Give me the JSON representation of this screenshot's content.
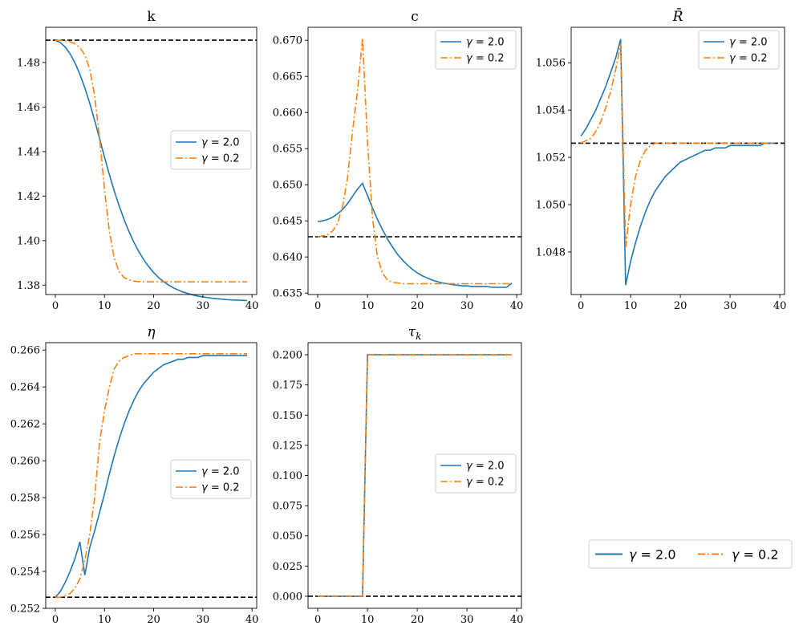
{
  "colors": {
    "series1": "#1f77b4",
    "series2": "#ff7f0e",
    "steady_state": "#000000",
    "axis": "#000000"
  },
  "chart_data": [
    {
      "type": "line",
      "title": "k",
      "x": [
        0,
        1,
        2,
        3,
        4,
        5,
        6,
        7,
        8,
        9,
        10,
        11,
        12,
        13,
        14,
        15,
        16,
        17,
        18,
        19,
        20,
        21,
        22,
        23,
        24,
        25,
        26,
        27,
        28,
        29,
        30,
        31,
        32,
        33,
        34,
        35,
        36,
        37,
        38,
        39
      ],
      "xlim": [
        -1.95,
        40.95
      ],
      "ylim": [
        1.3758,
        1.4958
      ],
      "xticks": [
        0,
        10,
        20,
        30,
        40
      ],
      "yticks": [
        1.38,
        1.4,
        1.42,
        1.44,
        1.46,
        1.48
      ],
      "ytick_labels": [
        "1.38",
        "1.40",
        "1.42",
        "1.44",
        "1.46",
        "1.48"
      ],
      "hline": 1.49,
      "legend_position": "center-right",
      "series": [
        {
          "name": "γ = 2.0",
          "values": [
            1.49,
            1.489,
            1.4869,
            1.4839,
            1.4798,
            1.4747,
            1.4686,
            1.4617,
            1.454,
            1.4458,
            1.4375,
            1.4296,
            1.4222,
            1.4155,
            1.4094,
            1.404,
            1.3992,
            1.395,
            1.3914,
            1.3883,
            1.3857,
            1.3834,
            1.3816,
            1.3801,
            1.3788,
            1.3778,
            1.3769,
            1.3762,
            1.3756,
            1.3751,
            1.3747,
            1.3744,
            1.3741,
            1.3739,
            1.3737,
            1.3735,
            1.3734,
            1.3733,
            1.3732,
            1.3731
          ]
        },
        {
          "name": "γ = 0.2",
          "values": [
            1.49,
            1.4899,
            1.4897,
            1.4893,
            1.4884,
            1.4867,
            1.4834,
            1.477,
            1.465,
            1.446,
            1.423,
            1.404,
            1.392,
            1.386,
            1.3834,
            1.3823,
            1.3818,
            1.3816,
            1.3815,
            1.3815,
            1.3815,
            1.3815,
            1.3815,
            1.3815,
            1.3815,
            1.3815,
            1.3815,
            1.3815,
            1.3815,
            1.3815,
            1.3815,
            1.3815,
            1.3815,
            1.3815,
            1.3815,
            1.3815,
            1.3815,
            1.3815,
            1.3815,
            1.3815
          ]
        }
      ]
    },
    {
      "type": "line",
      "title": "c",
      "x": [
        0,
        1,
        2,
        3,
        4,
        5,
        6,
        7,
        8,
        9,
        10,
        11,
        12,
        13,
        14,
        15,
        16,
        17,
        18,
        19,
        20,
        21,
        22,
        23,
        24,
        25,
        26,
        27,
        28,
        29,
        30,
        31,
        32,
        33,
        34,
        35,
        36,
        37,
        38,
        39
      ],
      "xlim": [
        -1.95,
        40.95
      ],
      "ylim": [
        0.6348,
        0.6718
      ],
      "xticks": [
        0,
        10,
        20,
        30,
        40
      ],
      "yticks": [
        0.635,
        0.64,
        0.645,
        0.65,
        0.655,
        0.66,
        0.665,
        0.67
      ],
      "ytick_labels": [
        "0.635",
        "0.640",
        "0.645",
        "0.650",
        "0.655",
        "0.660",
        "0.665",
        "0.670"
      ],
      "hline": 0.6428,
      "legend_position": "upper right",
      "series": [
        {
          "name": "γ = 2.0",
          "values": [
            0.6449,
            0.645,
            0.6452,
            0.6455,
            0.646,
            0.6466,
            0.6474,
            0.6484,
            0.6494,
            0.6502,
            0.6485,
            0.6468,
            0.6452,
            0.6438,
            0.6425,
            0.6414,
            0.6404,
            0.6396,
            0.6389,
            0.6383,
            0.6378,
            0.6374,
            0.6371,
            0.6368,
            0.6366,
            0.6364,
            0.6363,
            0.6362,
            0.6361,
            0.636,
            0.636,
            0.6359,
            0.6359,
            0.6359,
            0.6359,
            0.6358,
            0.6358,
            0.6358,
            0.6358,
            0.6364
          ]
        },
        {
          "name": "γ = 0.2",
          "values": [
            0.6428,
            0.6429,
            0.6431,
            0.6436,
            0.6447,
            0.647,
            0.651,
            0.6575,
            0.663,
            0.6703,
            0.656,
            0.6455,
            0.64,
            0.6378,
            0.6368,
            0.6365,
            0.6364,
            0.6363,
            0.6363,
            0.6363,
            0.6363,
            0.6363,
            0.6363,
            0.6363,
            0.6363,
            0.6363,
            0.6363,
            0.6363,
            0.6363,
            0.6363,
            0.6363,
            0.6363,
            0.6363,
            0.6363,
            0.6363,
            0.6363,
            0.6363,
            0.6363,
            0.6363,
            0.6363
          ]
        }
      ]
    },
    {
      "type": "line",
      "title": "R̄",
      "x": [
        0,
        1,
        2,
        3,
        4,
        5,
        6,
        7,
        8,
        9,
        10,
        11,
        12,
        13,
        14,
        15,
        16,
        17,
        18,
        19,
        20,
        21,
        22,
        23,
        24,
        25,
        26,
        27,
        28,
        29,
        30,
        31,
        32,
        33,
        34,
        35,
        36,
        37,
        38,
        39
      ],
      "xlim": [
        -1.95,
        40.95
      ],
      "ylim": [
        1.0462,
        1.0575
      ],
      "xticks": [
        0,
        10,
        20,
        30,
        40
      ],
      "yticks": [
        1.048,
        1.05,
        1.052,
        1.054,
        1.056
      ],
      "ytick_labels": [
        "1.048",
        "1.050",
        "1.052",
        "1.054",
        "1.056"
      ],
      "hline": 1.0526,
      "legend_position": "upper right",
      "series": [
        {
          "name": "γ = 2.0",
          "values": [
            1.0529,
            1.0532,
            1.0536,
            1.054,
            1.0545,
            1.055,
            1.0556,
            1.0562,
            1.057,
            1.0466,
            1.0476,
            1.0484,
            1.0491,
            1.0497,
            1.0502,
            1.0506,
            1.0509,
            1.0512,
            1.0514,
            1.0516,
            1.0518,
            1.0519,
            1.052,
            1.0521,
            1.0522,
            1.0523,
            1.0523,
            1.0524,
            1.0524,
            1.0524,
            1.0525,
            1.0525,
            1.0525,
            1.0525,
            1.0525,
            1.0525,
            1.0525,
            1.0526,
            1.0526,
            1.0526
          ]
        },
        {
          "name": "γ = 0.2",
          "values": [
            1.0526,
            1.0527,
            1.0528,
            1.0531,
            1.0535,
            1.0541,
            1.0548,
            1.0557,
            1.0568,
            1.0482,
            1.05,
            1.0512,
            1.0519,
            1.0523,
            1.0525,
            1.0526,
            1.0526,
            1.0526,
            1.0526,
            1.0526,
            1.0526,
            1.0526,
            1.0526,
            1.0526,
            1.0526,
            1.0526,
            1.0526,
            1.0526,
            1.0526,
            1.0526,
            1.0526,
            1.0526,
            1.0526,
            1.0526,
            1.0526,
            1.0526,
            1.0526,
            1.0526,
            1.0526,
            1.0526
          ]
        }
      ]
    },
    {
      "type": "line",
      "title": "η",
      "x": [
        0,
        1,
        2,
        3,
        4,
        5,
        6,
        7,
        8,
        9,
        10,
        11,
        12,
        13,
        14,
        15,
        16,
        17,
        18,
        19,
        20,
        21,
        22,
        23,
        24,
        25,
        26,
        27,
        28,
        29,
        30,
        31,
        32,
        33,
        34,
        35,
        36,
        37,
        38,
        39
      ],
      "xlim": [
        -1.95,
        40.95
      ],
      "ylim": [
        0.252,
        0.2664
      ],
      "xticks": [
        0,
        10,
        20,
        30,
        40
      ],
      "yticks": [
        0.252,
        0.254,
        0.256,
        0.258,
        0.26,
        0.262,
        0.264,
        0.266
      ],
      "ytick_labels": [
        "0.252",
        "0.254",
        "0.256",
        "0.258",
        "0.260",
        "0.262",
        "0.264",
        "0.266"
      ],
      "hline": 0.2526,
      "legend_position": "center-right",
      "series": [
        {
          "name": "γ = 2.0",
          "values": [
            0.2526,
            0.2529,
            0.2534,
            0.254,
            0.2547,
            0.2556,
            0.2538,
            0.2553,
            0.2562,
            0.2572,
            0.2582,
            0.2593,
            0.2603,
            0.2612,
            0.262,
            0.2627,
            0.2633,
            0.2638,
            0.2642,
            0.2645,
            0.2648,
            0.265,
            0.2652,
            0.2653,
            0.2654,
            0.2655,
            0.2655,
            0.2656,
            0.2656,
            0.2656,
            0.2657,
            0.2657,
            0.2657,
            0.2657,
            0.2657,
            0.2657,
            0.2657,
            0.2657,
            0.2657,
            0.2657
          ]
        },
        {
          "name": "γ = 0.2",
          "values": [
            0.2526,
            0.2526,
            0.2527,
            0.2528,
            0.2531,
            0.2536,
            0.2546,
            0.256,
            0.258,
            0.261,
            0.2627,
            0.264,
            0.265,
            0.2654,
            0.2656,
            0.2657,
            0.2658,
            0.2658,
            0.2658,
            0.2658,
            0.2658,
            0.2658,
            0.2658,
            0.2658,
            0.2658,
            0.2658,
            0.2658,
            0.2658,
            0.2658,
            0.2658,
            0.2658,
            0.2658,
            0.2658,
            0.2658,
            0.2658,
            0.2658,
            0.2658,
            0.2658,
            0.2658,
            0.2658
          ]
        }
      ]
    },
    {
      "type": "line",
      "title": "τ_k",
      "x": [
        0,
        1,
        2,
        3,
        4,
        5,
        6,
        7,
        8,
        9,
        10,
        11,
        12,
        13,
        14,
        15,
        16,
        17,
        18,
        19,
        20,
        21,
        22,
        23,
        24,
        25,
        26,
        27,
        28,
        29,
        30,
        31,
        32,
        33,
        34,
        35,
        36,
        37,
        38,
        39
      ],
      "xlim": [
        -1.95,
        40.95
      ],
      "ylim": [
        -0.01,
        0.21
      ],
      "xticks": [
        0,
        10,
        20,
        30,
        40
      ],
      "yticks": [
        0,
        0.025,
        0.05,
        0.075,
        0.1,
        0.125,
        0.15,
        0.175,
        0.2
      ],
      "ytick_labels": [
        "0.000",
        "0.025",
        "0.050",
        "0.075",
        "0.100",
        "0.125",
        "0.150",
        "0.175",
        "0.200"
      ],
      "hline": 0.0,
      "legend_position": "center-right",
      "series": [
        {
          "name": "γ = 2.0",
          "values": [
            0,
            0,
            0,
            0,
            0,
            0,
            0,
            0,
            0,
            0,
            0.2,
            0.2,
            0.2,
            0.2,
            0.2,
            0.2,
            0.2,
            0.2,
            0.2,
            0.2,
            0.2,
            0.2,
            0.2,
            0.2,
            0.2,
            0.2,
            0.2,
            0.2,
            0.2,
            0.2,
            0.2,
            0.2,
            0.2,
            0.2,
            0.2,
            0.2,
            0.2,
            0.2,
            0.2,
            0.2
          ]
        },
        {
          "name": "γ = 0.2",
          "values": [
            0,
            0,
            0,
            0,
            0,
            0,
            0,
            0,
            0,
            0,
            0.2,
            0.2,
            0.2,
            0.2,
            0.2,
            0.2,
            0.2,
            0.2,
            0.2,
            0.2,
            0.2,
            0.2,
            0.2,
            0.2,
            0.2,
            0.2,
            0.2,
            0.2,
            0.2,
            0.2,
            0.2,
            0.2,
            0.2,
            0.2,
            0.2,
            0.2,
            0.2,
            0.2,
            0.2,
            0.2
          ]
        }
      ]
    }
  ],
  "figure_legend": {
    "entries": [
      "γ = 2.0",
      "γ = 0.2"
    ]
  }
}
